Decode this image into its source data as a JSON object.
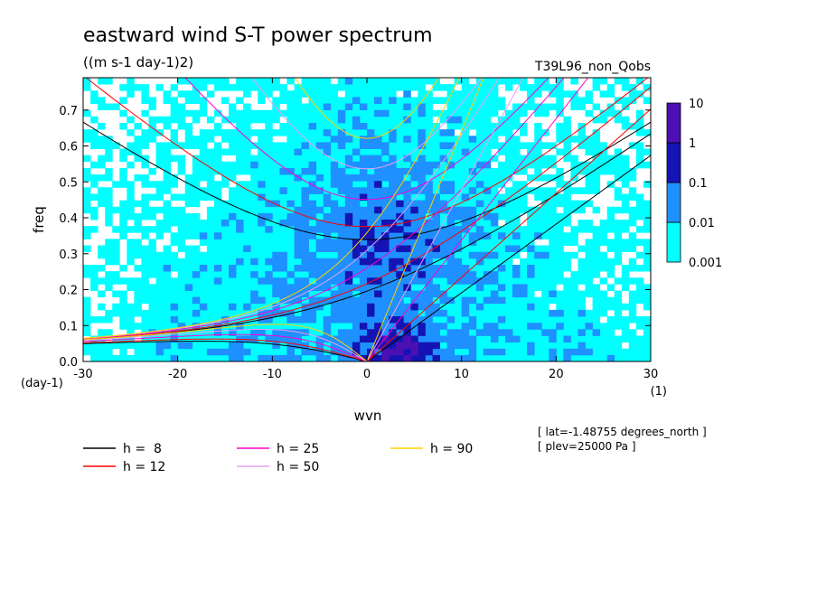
{
  "chart_data": {
    "type": "heatmap",
    "title": "eastward wind S-T power spectrum",
    "units_label": "((m s-1 day-1)2)",
    "dataset_label": "T39L96_non_Qobs",
    "xlabel": "wvn",
    "ylabel": "freq",
    "x_unit_label": "(1)",
    "y_unit_label": "(day-1)",
    "xlim": [
      -30,
      30
    ],
    "ylim": [
      0.0,
      0.79
    ],
    "x_ticks": [
      -30,
      -20,
      -10,
      0,
      10,
      20,
      30
    ],
    "y_ticks": [
      0.0,
      0.1,
      0.2,
      0.3,
      0.4,
      0.5,
      0.6,
      0.7
    ],
    "x_tick_labels": [
      "-30",
      "-20",
      "-10",
      "0",
      "10",
      "20",
      "30"
    ],
    "y_tick_labels": [
      "0.0",
      "0.1",
      "0.2",
      "0.3",
      "0.4",
      "0.5",
      "0.6",
      "0.7"
    ],
    "colorbar": {
      "levels": [
        0.001,
        0.01,
        0.1,
        1,
        10
      ],
      "labels": [
        "0.001",
        "0.01",
        "0.1",
        "1",
        "10"
      ],
      "colors": [
        "#ffffff",
        "#00ffff",
        "#1e90ff",
        "#1414b4",
        "#4b0fb4"
      ]
    },
    "dispersion_curves": [
      {
        "name": "h =  8",
        "h": 8,
        "color": "#000000"
      },
      {
        "name": "h = 12",
        "h": 12,
        "color": "#ff0000"
      },
      {
        "name": "h = 25",
        "h": 25,
        "color": "#ff00cc"
      },
      {
        "name": "h = 50",
        "h": 50,
        "color": "#e6a0f0"
      },
      {
        "name": "h = 90",
        "h": 90,
        "color": "#ffd000"
      }
    ],
    "annotations": [
      "[ lat=-1.48755 degrees_north ]",
      "[ plev=25000 Pa ]"
    ]
  }
}
